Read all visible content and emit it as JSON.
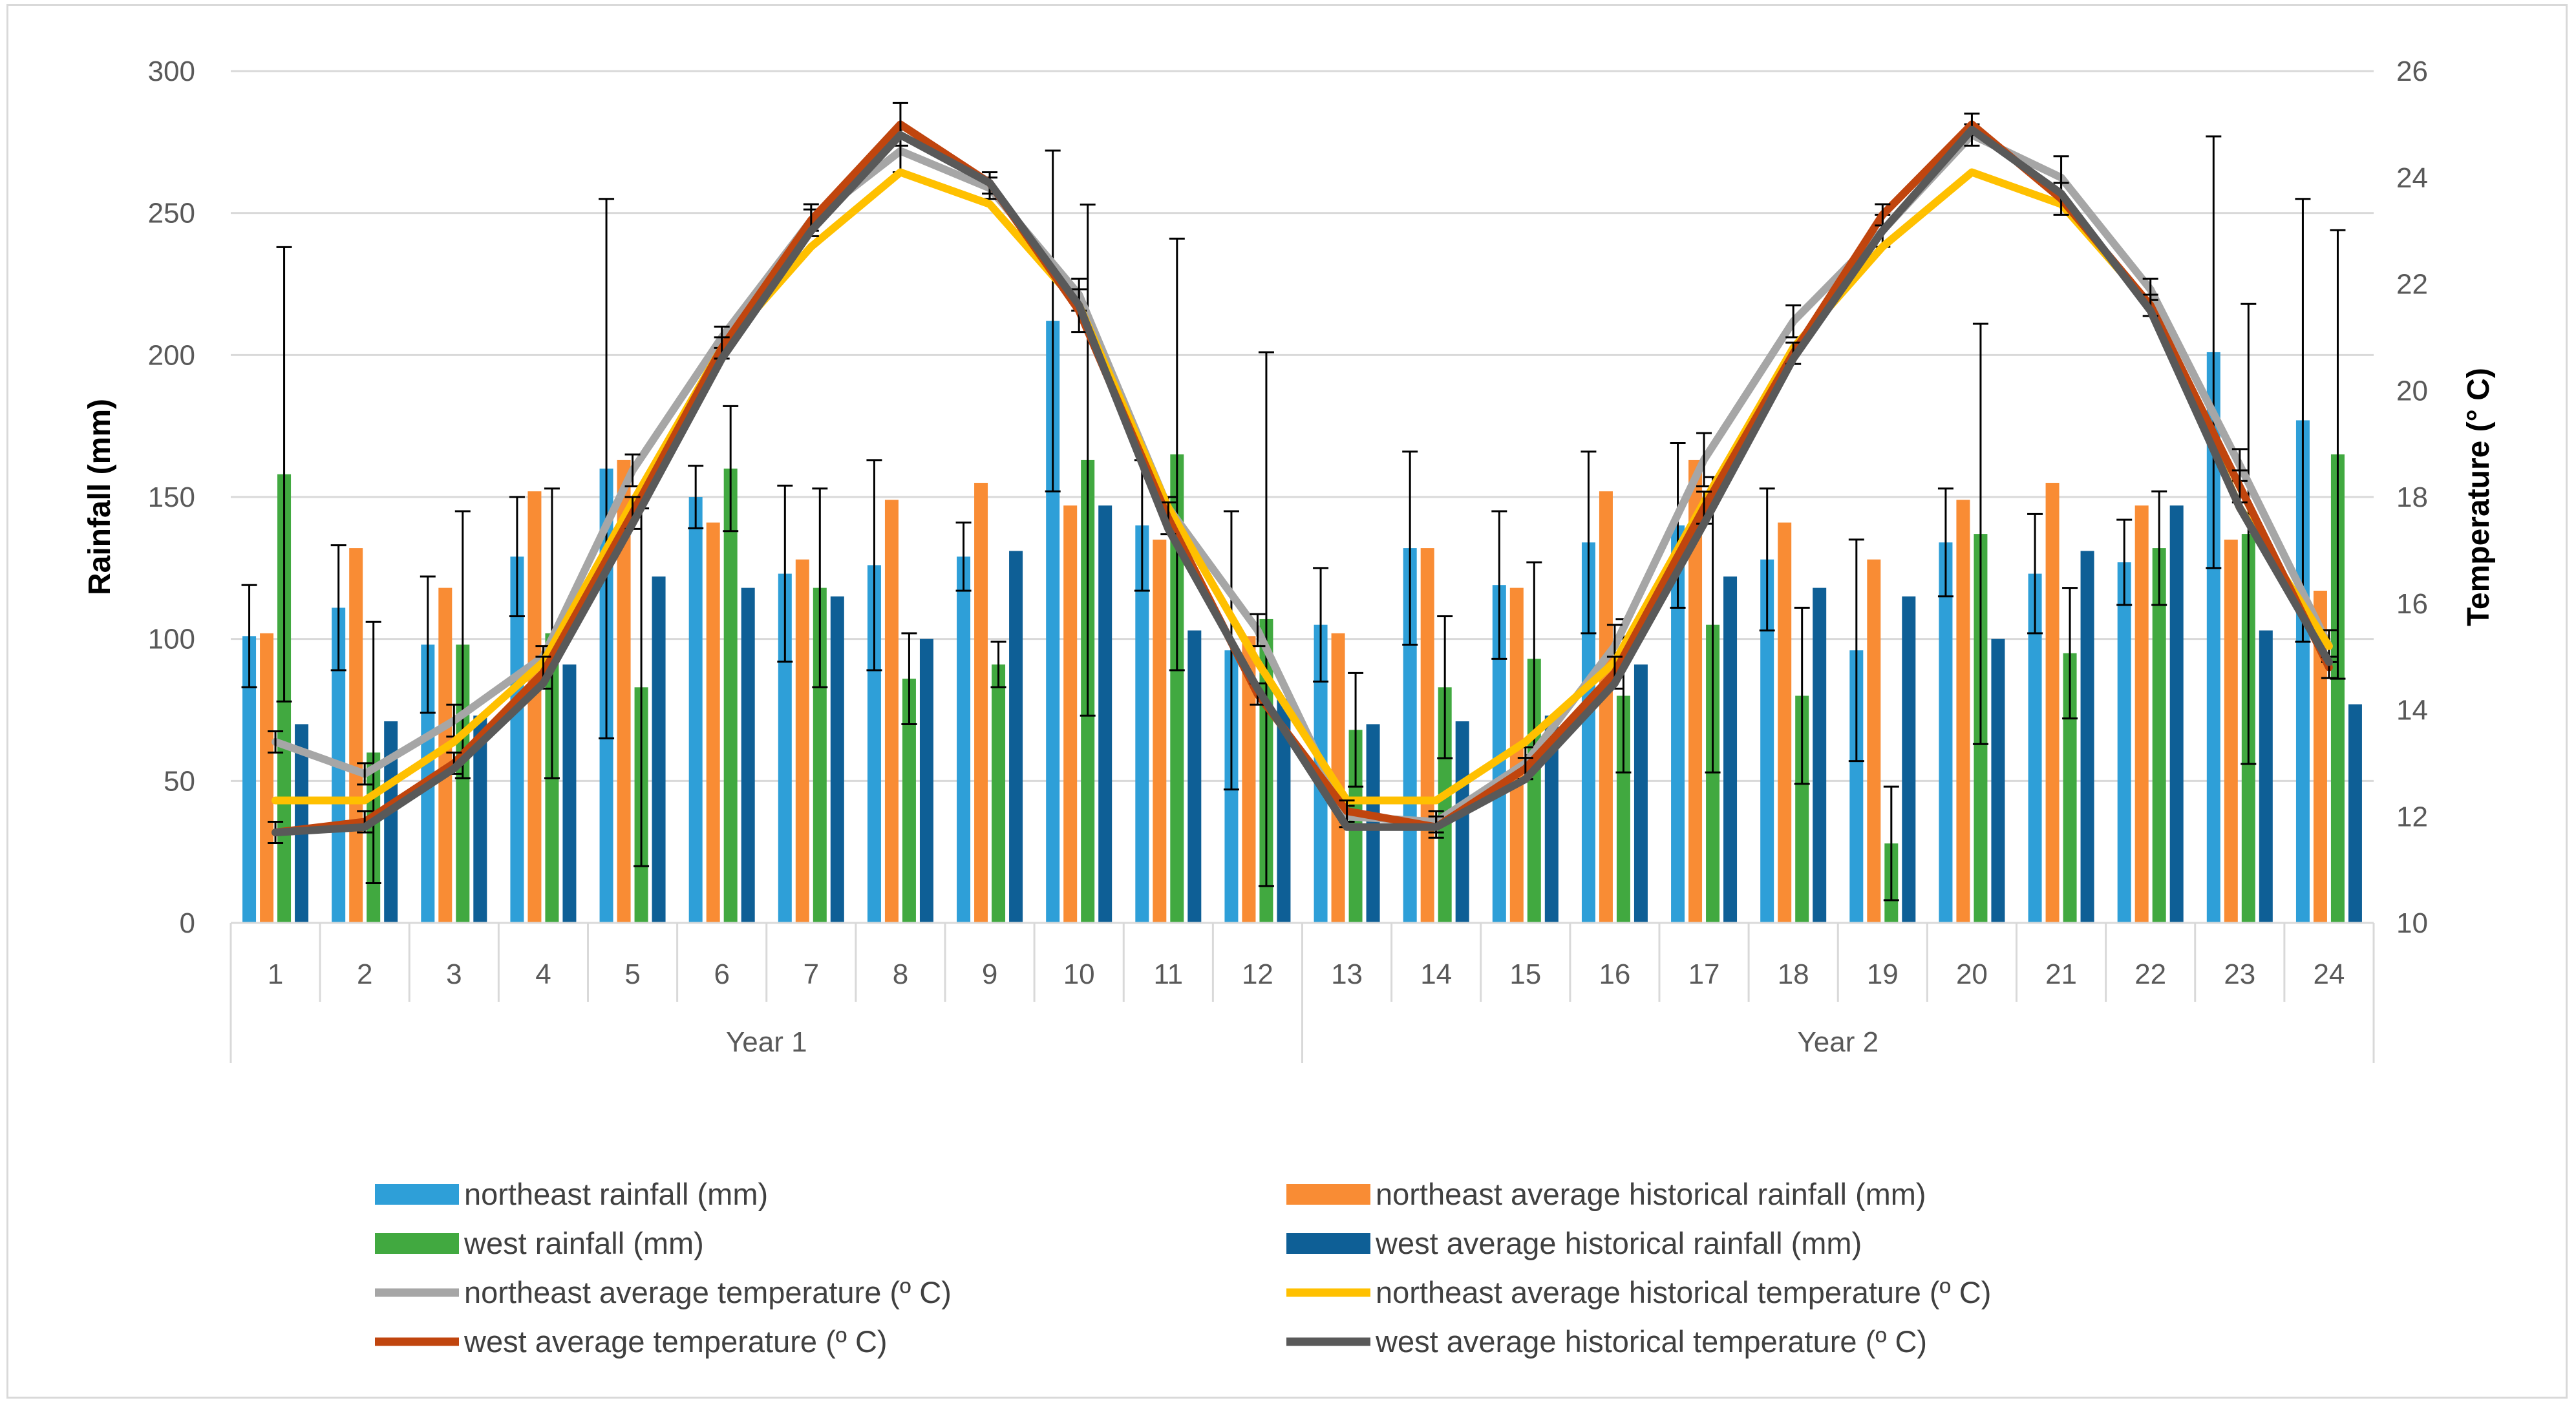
{
  "chart_data": {
    "type": "bar+line",
    "title": "",
    "xlabel": "",
    "ylabel": "Rainfall (mm)",
    "y2label": "Temperature (° C)",
    "ylim": [
      0,
      300
    ],
    "y2lim": [
      10,
      26
    ],
    "yticks": [
      "0",
      "50",
      "100",
      "150",
      "200",
      "250",
      "300"
    ],
    "y2ticks": [
      "10",
      "12",
      "14",
      "16",
      "18",
      "20",
      "22",
      "24",
      "26"
    ],
    "categories": [
      "1",
      "2",
      "3",
      "4",
      "5",
      "6",
      "7",
      "8",
      "9",
      "10",
      "11",
      "12",
      "13",
      "14",
      "15",
      "16",
      "17",
      "18",
      "19",
      "20",
      "21",
      "22",
      "23",
      "24"
    ],
    "groups": [
      {
        "label": "Year 1",
        "count": 12
      },
      {
        "label": "Year 2",
        "count": 12
      }
    ],
    "grid": true,
    "legend_position": "bottom",
    "bar_series": [
      {
        "name": "northeast rainfall (mm)",
        "color": "#2e9fd8",
        "values": [
          101,
          111,
          98,
          129,
          160,
          150,
          123,
          126,
          129,
          212,
          140,
          96,
          105,
          132,
          119,
          134,
          140,
          128,
          96,
          134,
          123,
          127,
          201,
          177
        ],
        "errors": [
          18,
          22,
          24,
          21,
          95,
          11,
          31,
          37,
          12,
          60,
          23,
          49,
          20,
          34,
          26,
          32,
          29,
          25,
          39,
          19,
          21,
          15,
          76,
          78
        ]
      },
      {
        "name": "northeast average historical rainfall (mm)",
        "color": "#f98c34",
        "values": [
          102,
          132,
          118,
          152,
          163,
          141,
          128,
          149,
          155,
          147,
          135,
          101,
          102,
          132,
          118,
          152,
          163,
          141,
          128,
          149,
          155,
          147,
          135,
          117
        ],
        "errors": [
          0,
          0,
          0,
          0,
          0,
          0,
          0,
          0,
          0,
          0,
          0,
          0,
          0,
          0,
          0,
          0,
          0,
          0,
          0,
          0,
          0,
          0,
          0,
          0
        ]
      },
      {
        "name": "west  rainfall (mm)",
        "color": "#41a940",
        "values": [
          158,
          60,
          98,
          102,
          83,
          160,
          118,
          86,
          91,
          163,
          165,
          107,
          68,
          83,
          93,
          80,
          105,
          80,
          28,
          137,
          95,
          132,
          137,
          165
        ],
        "errors": [
          80,
          46,
          47,
          51,
          63,
          22,
          35,
          16,
          8,
          90,
          76,
          94,
          20,
          25,
          34,
          27,
          52,
          31,
          20,
          74,
          23,
          20,
          81,
          79
        ]
      },
      {
        "name": "west  average historical rainfall (mm)",
        "color": "#0e5f96",
        "values": [
          70,
          71,
          73,
          91,
          122,
          118,
          115,
          100,
          131,
          147,
          103,
          79,
          70,
          71,
          73,
          91,
          122,
          118,
          115,
          100,
          131,
          147,
          103,
          77
        ],
        "errors": [
          0,
          0,
          0,
          0,
          0,
          0,
          0,
          0,
          0,
          0,
          0,
          0,
          0,
          0,
          0,
          0,
          0,
          0,
          0,
          0,
          0,
          0,
          0,
          0
        ]
      }
    ],
    "line_series": [
      {
        "name": "northeast average temperature (º C)",
        "color": "#a6a6a6",
        "values": [
          13.4,
          12.8,
          13.8,
          15.0,
          18.5,
          21.0,
          23.2,
          24.5,
          23.8,
          21.8,
          17.8,
          15.5,
          12.0,
          11.9,
          13.0,
          15.2,
          18.7,
          21.3,
          23.0,
          24.8,
          24.0,
          21.9,
          18.6,
          15.2
        ],
        "errors": [
          0.2,
          0.2,
          0.3,
          0.2,
          0.3,
          0.2,
          0.2,
          0.4,
          0.2,
          0.3,
          0.2,
          0.3,
          0.2,
          0.2,
          0.3,
          0.4,
          0.5,
          0.3,
          0.3,
          0.2,
          0.4,
          0.2,
          0.3,
          0.3
        ]
      },
      {
        "name": "northeast average historical temperature (º C)",
        "color": "#ffc000",
        "values": [
          12.3,
          12.3,
          13.4,
          14.9,
          17.9,
          20.8,
          22.7,
          24.1,
          23.5,
          21.6,
          17.8,
          14.9,
          12.3,
          12.3,
          13.4,
          14.9,
          17.9,
          20.8,
          22.7,
          24.1,
          23.5,
          21.6,
          17.8,
          15.2
        ],
        "errors": [
          0,
          0,
          0,
          0,
          0,
          0,
          0,
          0,
          0,
          0,
          0,
          0,
          0,
          0,
          0,
          0,
          0,
          0,
          0,
          0,
          0,
          0,
          0,
          0
        ]
      },
      {
        "name": "west  average temperature (º C)",
        "color": "#c0450e",
        "values": [
          11.7,
          11.9,
          13.0,
          14.7,
          17.7,
          20.8,
          23.2,
          25.0,
          23.9,
          21.5,
          17.6,
          14.3,
          12.1,
          11.8,
          12.9,
          14.7,
          17.8,
          20.7,
          23.3,
          25.0,
          23.6,
          21.6,
          18.2,
          14.8
        ],
        "errors": [
          0.2,
          0.2,
          0.2,
          0.3,
          0.3,
          0.2,
          0.3,
          0.4,
          0.2,
          0.4,
          0.3,
          0.2,
          0.2,
          0.2,
          0.2,
          0.3,
          0.3,
          0.2,
          0.2,
          0.2,
          0.3,
          0.2,
          0.3,
          0.2
        ]
      },
      {
        "name": "west  average historical temperature (º C)",
        "color": "#595959",
        "values": [
          11.7,
          11.8,
          12.9,
          14.5,
          17.5,
          20.6,
          23.0,
          24.8,
          23.9,
          21.6,
          17.4,
          14.4,
          11.8,
          11.8,
          12.7,
          14.5,
          17.5,
          20.6,
          23.0,
          24.9,
          23.7,
          21.5,
          17.8,
          14.9
        ],
        "errors": [
          0,
          0,
          0,
          0,
          0,
          0,
          0,
          0,
          0,
          0,
          0,
          0,
          0,
          0,
          0,
          0,
          0,
          0,
          0,
          0,
          0,
          0,
          0,
          0
        ]
      }
    ]
  }
}
